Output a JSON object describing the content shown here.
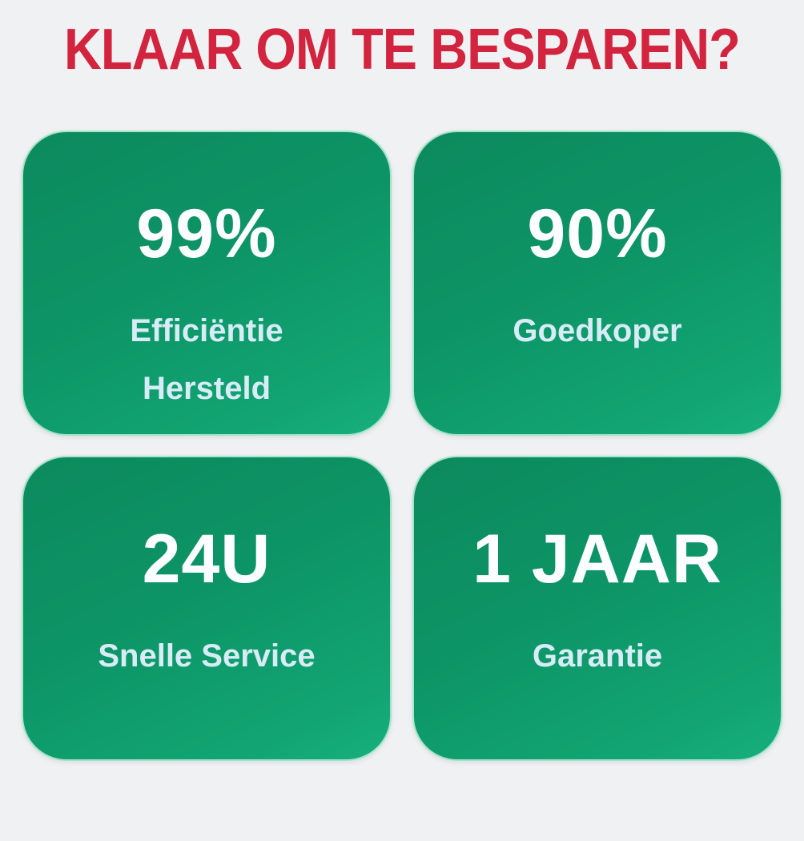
{
  "page": {
    "background_color": "#f0f1f2"
  },
  "header": {
    "title": "KLAAR OM TE BESPAREN?",
    "color": "#d2233f"
  },
  "cards": [
    {
      "id": "efficiency",
      "value": "99%",
      "label_lines": [
        "Efficiëntie",
        "Hersteld"
      ]
    },
    {
      "id": "cheaper",
      "value": "90%",
      "label_lines": [
        "Goedkoper"
      ]
    },
    {
      "id": "service",
      "value": "24U",
      "label_lines": [
        "Snelle Service"
      ]
    },
    {
      "id": "warranty",
      "value": "1 JAAR",
      "label_lines": [
        "Garantie"
      ]
    }
  ],
  "colors": {
    "card_gradient_start": "#0c8a5e",
    "card_gradient_end": "#17b07d",
    "value_text": "#fdfeff",
    "label_text": "#d8ecf7"
  }
}
